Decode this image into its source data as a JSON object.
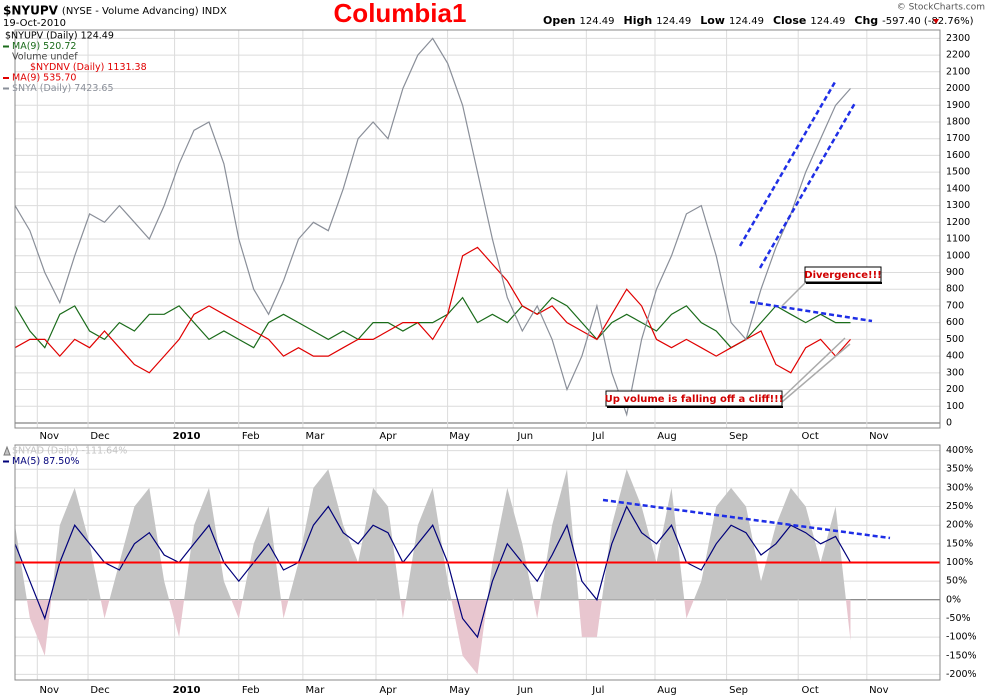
{
  "header": {
    "symbol": "$NYUPV",
    "description": "(NYSE - Volume Advancing) INDX",
    "date": "19-Oct-2010",
    "title": "Columbia1",
    "watermark": "© StockCharts.com",
    "stats": [
      {
        "label": "Open",
        "value": "124.49"
      },
      {
        "label": "High",
        "value": "124.49"
      },
      {
        "label": "Low",
        "value": "124.49"
      },
      {
        "label": "Close",
        "value": "124.49"
      },
      {
        "label": "Chg",
        "value": "-597.40 (-82.76%)"
      }
    ]
  },
  "chart_data": [
    {
      "type": "line",
      "legend_notes": [
        "$NYUPV (Daily) 124.49",
        "Volume undef",
        "$NYDNV (Daily) 1131.38"
      ],
      "annotations": [
        "Divergence!!!",
        "Up volume is falling off a cliff!!!"
      ],
      "xlim": [
        0,
        62
      ],
      "xticks": [
        {
          "value": 2.3,
          "label": "Nov"
        },
        {
          "value": 5.7,
          "label": "Dec"
        },
        {
          "value": 11.5,
          "label": "2010"
        },
        {
          "value": 15.8,
          "label": "Feb"
        },
        {
          "value": 20.1,
          "label": "Mar"
        },
        {
          "value": 25.0,
          "label": "Apr"
        },
        {
          "value": 29.8,
          "label": "May"
        },
        {
          "value": 34.2,
          "label": "Jun"
        },
        {
          "value": 39.1,
          "label": "Jul"
        },
        {
          "value": 43.7,
          "label": "Aug"
        },
        {
          "value": 48.5,
          "label": "Sep"
        },
        {
          "value": 53.3,
          "label": "Oct"
        },
        {
          "value": 57.9,
          "label": "Nov"
        }
      ],
      "ylim": [
        -30,
        2350
      ],
      "yticks": [
        0,
        100,
        200,
        300,
        400,
        500,
        600,
        700,
        800,
        900,
        1000,
        1100,
        1200,
        1300,
        1400,
        1500,
        1600,
        1700,
        1800,
        1900,
        2000,
        2100,
        2200,
        2300
      ],
      "grid": true,
      "series": [
        {
          "name": "MA(9) 520.72",
          "color": "#1a6b1a",
          "values": [
            700,
            550,
            450,
            650,
            700,
            550,
            500,
            600,
            550,
            650,
            650,
            700,
            600,
            500,
            550,
            500,
            450,
            600,
            650,
            600,
            550,
            500,
            550,
            500,
            600,
            600,
            550,
            600,
            600,
            650,
            750,
            600,
            650,
            600,
            700,
            650,
            750,
            700,
            600,
            500,
            600,
            650,
            600,
            550,
            650,
            700,
            600,
            550,
            450,
            500,
            600,
            700,
            650,
            600,
            650,
            600,
            600
          ]
        },
        {
          "name": "MA(9) 535.70",
          "color": "#e00000",
          "values": [
            450,
            500,
            500,
            400,
            500,
            450,
            550,
            450,
            350,
            300,
            400,
            500,
            650,
            700,
            650,
            600,
            550,
            500,
            400,
            450,
            400,
            400,
            450,
            500,
            500,
            550,
            600,
            600,
            500,
            650,
            1000,
            1050,
            950,
            850,
            700,
            650,
            700,
            600,
            550,
            500,
            650,
            800,
            700,
            500,
            450,
            500,
            450,
            400,
            450,
            500,
            550,
            350,
            300,
            450,
            500,
            400,
            500
          ]
        },
        {
          "name": "$NYA (Daily) 7423.65",
          "color": "#8a8f99",
          "values": [
            1300,
            1150,
            900,
            720,
            1000,
            1250,
            1200,
            1300,
            1200,
            1100,
            1300,
            1550,
            1750,
            1800,
            1550,
            1100,
            800,
            650,
            850,
            1100,
            1200,
            1150,
            1400,
            1700,
            1800,
            1700,
            2000,
            2200,
            2300,
            2150,
            1900,
            1500,
            1100,
            750,
            550,
            700,
            500,
            200,
            400,
            700,
            300,
            50,
            500,
            800,
            1000,
            1250,
            1300,
            1000,
            600,
            500,
            800,
            1050,
            1250,
            1500,
            1700,
            1900,
            2000
          ]
        }
      ]
    },
    {
      "type": "line",
      "xlim": [
        0,
        62
      ],
      "xticks": [
        {
          "value": 2.3,
          "label": "Nov"
        },
        {
          "value": 5.7,
          "label": "Dec"
        },
        {
          "value": 11.5,
          "label": "2010"
        },
        {
          "value": 15.8,
          "label": "Feb"
        },
        {
          "value": 20.1,
          "label": "Mar"
        },
        {
          "value": 25.0,
          "label": "Apr"
        },
        {
          "value": 29.8,
          "label": "May"
        },
        {
          "value": 34.2,
          "label": "Jun"
        },
        {
          "value": 39.1,
          "label": "Jul"
        },
        {
          "value": 43.7,
          "label": "Aug"
        },
        {
          "value": 48.5,
          "label": "Sep"
        },
        {
          "value": 53.3,
          "label": "Oct"
        },
        {
          "value": 57.9,
          "label": "Nov"
        }
      ],
      "ylim": [
        -215,
        415
      ],
      "yticks": [
        {
          "value": -200,
          "label": "-200%"
        },
        {
          "value": -150,
          "label": "-150%"
        },
        {
          "value": -100,
          "label": "-100%"
        },
        {
          "value": -50,
          "label": "-50%"
        },
        {
          "value": 0,
          "label": "0%"
        },
        {
          "value": 50,
          "label": "50%"
        },
        {
          "value": 100,
          "label": "100%"
        },
        {
          "value": 150,
          "label": "150%"
        },
        {
          "value": 200,
          "label": "200%"
        },
        {
          "value": 250,
          "label": "250%"
        },
        {
          "value": 300,
          "label": "300%"
        },
        {
          "value": 350,
          "label": "350%"
        },
        {
          "value": 400,
          "label": "400%"
        }
      ],
      "grid": true,
      "reference_line": {
        "value": 100,
        "color": "#ff0000"
      },
      "series": [
        {
          "name": "$NYAD (Daily) -111.64%",
          "kind": "area",
          "color": "#c4c4c4",
          "negative_color": "#e8c6cf",
          "values": [
            200,
            -50,
            -150,
            200,
            300,
            150,
            -50,
            100,
            250,
            300,
            50,
            -100,
            200,
            300,
            50,
            -50,
            150,
            250,
            -50,
            100,
            300,
            350,
            200,
            100,
            300,
            250,
            -50,
            200,
            300,
            50,
            -150,
            -200,
            100,
            300,
            150,
            -50,
            200,
            350,
            -100,
            -100,
            200,
            350,
            250,
            100,
            300,
            -50,
            50,
            250,
            300,
            250,
            50,
            200,
            300,
            250,
            100,
            250,
            -110
          ]
        },
        {
          "name": "MA(5) 87.50%",
          "color": "#00007a",
          "values": [
            150,
            50,
            -50,
            100,
            200,
            150,
            100,
            80,
            150,
            180,
            120,
            100,
            150,
            200,
            100,
            50,
            100,
            150,
            80,
            100,
            200,
            250,
            180,
            150,
            200,
            180,
            100,
            150,
            200,
            100,
            -50,
            -100,
            50,
            150,
            100,
            50,
            120,
            200,
            50,
            0,
            150,
            250,
            180,
            150,
            200,
            100,
            80,
            150,
            200,
            180,
            120,
            150,
            200,
            180,
            150,
            170,
            100
          ]
        }
      ]
    }
  ]
}
